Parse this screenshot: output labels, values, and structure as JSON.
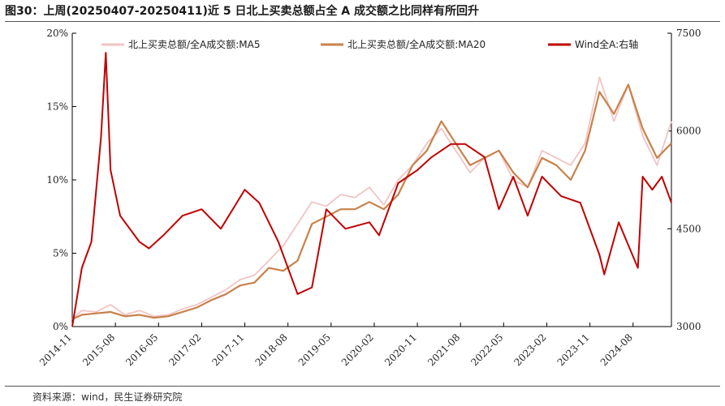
{
  "header": {
    "title": "图30：上周(20250407-20250411)近 5 日北上买卖总额占全 A 成交额之比同样有所回升"
  },
  "footer": {
    "source": "资料来源：wind，民生证券研究院"
  },
  "colors": {
    "ma5": "#f2c4c4",
    "ma20": "#c8814a",
    "wind": "#c00000",
    "axis": "#000000"
  },
  "chart_data": {
    "type": "line",
    "legend_position": "top",
    "grid": false,
    "x_tick_labels": [
      "2014-11",
      "2015-08",
      "2016-05",
      "2017-02",
      "2017-11",
      "2018-08",
      "2019-05",
      "2020-02",
      "2020-11",
      "2021-08",
      "2022-05",
      "2023-02",
      "2023-11",
      "2024-08"
    ],
    "x_range": [
      "2014-11",
      "2025-04"
    ],
    "y_left": {
      "ticks": [
        "0%",
        "5%",
        "10%",
        "15%",
        "20%"
      ],
      "range": [
        0,
        20
      ],
      "unit": "%"
    },
    "y_right": {
      "ticks": [
        "3000",
        "4500",
        "6000",
        "7500"
      ],
      "range": [
        3000,
        7500
      ]
    },
    "series": [
      {
        "name": "北上买卖总额/全A成交额:MA5",
        "axis": "left",
        "x": [
          "2014-11",
          "2015-01",
          "2015-04",
          "2015-07",
          "2015-10",
          "2016-01",
          "2016-04",
          "2016-07",
          "2016-10",
          "2017-01",
          "2017-04",
          "2017-07",
          "2017-10",
          "2018-01",
          "2018-04",
          "2018-07",
          "2018-10",
          "2019-01",
          "2019-04",
          "2019-07",
          "2019-10",
          "2020-01",
          "2020-04",
          "2020-07",
          "2020-10",
          "2021-01",
          "2021-04",
          "2021-07",
          "2021-10",
          "2022-01",
          "2022-04",
          "2022-07",
          "2022-10",
          "2023-01",
          "2023-04",
          "2023-07",
          "2023-10",
          "2024-01",
          "2024-04",
          "2024-07",
          "2024-10",
          "2025-01",
          "2025-04"
        ],
        "values": [
          0.5,
          1.1,
          1.0,
          1.5,
          0.8,
          1.1,
          0.7,
          0.8,
          1.2,
          1.5,
          2.0,
          2.5,
          3.2,
          3.5,
          4.5,
          5.5,
          7.0,
          8.5,
          8.2,
          9.0,
          8.8,
          9.5,
          8.3,
          10.0,
          11.0,
          12.5,
          13.5,
          12.0,
          10.5,
          11.5,
          12.0,
          10.0,
          9.5,
          12.0,
          11.5,
          11.0,
          12.5,
          17.0,
          14.0,
          16.5,
          13.0,
          11.0,
          14.0
        ]
      },
      {
        "name": "北上买卖总额/全A成交额:MA20",
        "axis": "left",
        "x": [
          "2014-11",
          "2015-01",
          "2015-04",
          "2015-07",
          "2015-10",
          "2016-01",
          "2016-04",
          "2016-07",
          "2016-10",
          "2017-01",
          "2017-04",
          "2017-07",
          "2017-10",
          "2018-01",
          "2018-04",
          "2018-07",
          "2018-10",
          "2019-01",
          "2019-04",
          "2019-07",
          "2019-10",
          "2020-01",
          "2020-04",
          "2020-07",
          "2020-10",
          "2021-01",
          "2021-04",
          "2021-07",
          "2021-10",
          "2022-01",
          "2022-04",
          "2022-07",
          "2022-10",
          "2023-01",
          "2023-04",
          "2023-07",
          "2023-10",
          "2024-01",
          "2024-04",
          "2024-07",
          "2024-10",
          "2025-01",
          "2025-04"
        ],
        "values": [
          0.5,
          0.8,
          0.9,
          1.0,
          0.7,
          0.8,
          0.6,
          0.7,
          1.0,
          1.3,
          1.8,
          2.2,
          2.8,
          3.0,
          4.0,
          3.8,
          4.5,
          7.0,
          7.5,
          8.0,
          8.0,
          8.5,
          8.0,
          9.0,
          11.0,
          12.0,
          14.0,
          12.5,
          11.0,
          11.5,
          12.0,
          10.5,
          9.5,
          11.5,
          11.0,
          10.0,
          12.0,
          16.0,
          14.5,
          16.5,
          13.5,
          11.5,
          12.5
        ]
      },
      {
        "name": "Wind全A:右轴",
        "axis": "right",
        "x": [
          "2014-11",
          "2015-01",
          "2015-03",
          "2015-05",
          "2015-06",
          "2015-07",
          "2015-09",
          "2016-01",
          "2016-03",
          "2016-06",
          "2016-10",
          "2017-02",
          "2017-06",
          "2017-11",
          "2018-02",
          "2018-06",
          "2018-10",
          "2019-01",
          "2019-04",
          "2019-08",
          "2020-01",
          "2020-03",
          "2020-07",
          "2020-11",
          "2021-02",
          "2021-06",
          "2021-09",
          "2022-01",
          "2022-04",
          "2022-07",
          "2022-10",
          "2023-01",
          "2023-05",
          "2023-09",
          "2024-01",
          "2024-02",
          "2024-05",
          "2024-09",
          "2024-10",
          "2024-12",
          "2025-02",
          "2025-04"
        ],
        "values": [
          3000,
          3900,
          4300,
          5900,
          7200,
          5400,
          4700,
          4300,
          4200,
          4400,
          4700,
          4800,
          4500,
          5100,
          4900,
          4300,
          3500,
          3600,
          4800,
          4500,
          4600,
          4400,
          5200,
          5400,
          5600,
          5800,
          5800,
          5600,
          4800,
          5300,
          4700,
          5300,
          5000,
          4900,
          4100,
          3800,
          4600,
          3900,
          5300,
          5100,
          5300,
          4900
        ]
      }
    ]
  }
}
